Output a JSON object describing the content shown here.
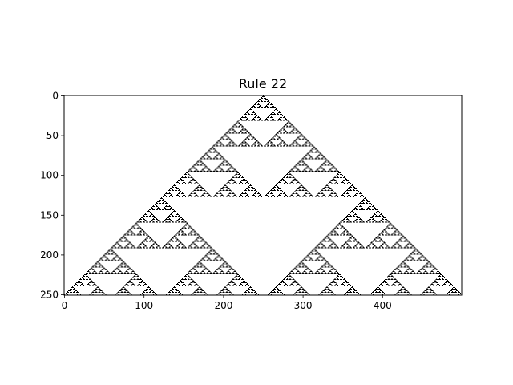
{
  "chart_data": {
    "type": "heatmap",
    "title": "Rule 22",
    "rule": 22,
    "width": 500,
    "height": 251,
    "initial_cell": 250,
    "x_ticks": [
      0,
      100,
      200,
      300,
      400
    ],
    "y_ticks": [
      0,
      50,
      100,
      150,
      200,
      250
    ],
    "xlim": [
      0,
      500
    ],
    "ylim": [
      251,
      0
    ],
    "cell_color": "#000000",
    "background_color": "#ffffff",
    "grid": false
  }
}
